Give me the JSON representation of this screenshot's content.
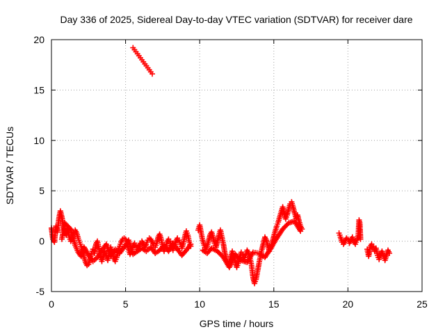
{
  "chart_data": {
    "type": "scatter",
    "title": "Day 336 of 2025, Sidereal Day-to-day VTEC variation (SDTVAR) for receiver dare",
    "xlabel": "GPS time / hours",
    "ylabel": "SDTVAR / TECUs",
    "xlim": [
      0,
      25
    ],
    "ylim": [
      -5,
      20
    ],
    "xticks": [
      "0",
      "5",
      "10",
      "15",
      "20",
      "25"
    ],
    "yticks": [
      "-5",
      "0",
      "5",
      "10",
      "15",
      "20"
    ],
    "grid": true,
    "marker": "+",
    "color": "#ff0000",
    "series": [
      {
        "name": "SDTVAR",
        "segments": [
          [
            [
              0.0,
              1.3
            ],
            [
              0.1,
              0.2
            ],
            [
              0.2,
              -0.1
            ],
            [
              0.3,
              1.5
            ],
            [
              0.4,
              0.9
            ],
            [
              0.5,
              2.2
            ],
            [
              0.6,
              3.0
            ],
            [
              0.7,
              2.4
            ],
            [
              0.8,
              1.6
            ],
            [
              0.9,
              0.9
            ],
            [
              1.0,
              0.6
            ],
            [
              1.1,
              1.3
            ],
            [
              1.2,
              0.4
            ],
            [
              1.3,
              0.0
            ],
            [
              1.4,
              0.3
            ],
            [
              1.5,
              0.9
            ],
            [
              1.6,
              1.1
            ],
            [
              1.7,
              0.8
            ],
            [
              1.8,
              0.3
            ],
            [
              1.9,
              -0.1
            ],
            [
              2.0,
              -0.5
            ],
            [
              2.1,
              -1.0
            ],
            [
              2.2,
              -1.6
            ],
            [
              2.3,
              -2.1
            ],
            [
              2.4,
              -2.4
            ],
            [
              2.5,
              -2.3
            ],
            [
              2.6,
              -1.8
            ],
            [
              2.7,
              -1.2
            ],
            [
              2.8,
              -0.8
            ],
            [
              2.9,
              -1.2
            ],
            [
              3.0,
              -0.3
            ],
            [
              3.1,
              0.0
            ],
            [
              3.2,
              -0.7
            ],
            [
              3.3,
              -1.5
            ],
            [
              3.4,
              -2.0
            ],
            [
              3.5,
              -1.6
            ],
            [
              3.6,
              -1.0
            ],
            [
              3.7,
              -1.4
            ],
            [
              3.8,
              -1.9
            ],
            [
              3.9,
              -1.2
            ],
            [
              4.0,
              -0.6
            ],
            [
              4.1,
              -1.0
            ],
            [
              4.2,
              -1.7
            ],
            [
              4.3,
              -2.0
            ],
            [
              4.4,
              -1.6
            ],
            [
              4.5,
              -1.0
            ],
            [
              4.6,
              -0.5
            ],
            [
              4.7,
              -0.1
            ],
            [
              4.8,
              0.2
            ],
            [
              4.9,
              0.3
            ],
            [
              5.0,
              0.2
            ],
            [
              5.1,
              -0.2
            ],
            [
              5.2,
              -0.8
            ],
            [
              5.3,
              -1.3
            ],
            [
              5.4,
              -1.0
            ],
            [
              5.5,
              -0.5
            ],
            [
              5.6,
              -0.2
            ],
            [
              5.7,
              -0.4
            ],
            [
              5.8,
              -0.8
            ],
            [
              5.9,
              -0.5
            ],
            [
              6.0,
              -0.2
            ],
            [
              6.1,
              0.0
            ],
            [
              6.2,
              -0.3
            ],
            [
              6.3,
              -0.6
            ],
            [
              6.4,
              -0.3
            ],
            [
              6.5,
              0.1
            ],
            [
              6.6,
              0.3
            ],
            [
              6.7,
              0.2
            ],
            [
              6.8,
              -0.1
            ],
            [
              6.9,
              -0.4
            ],
            [
              7.0,
              -0.6
            ],
            [
              7.1,
              -0.2
            ],
            [
              7.2,
              0.4
            ],
            [
              7.3,
              0.7
            ],
            [
              7.4,
              0.2
            ],
            [
              7.5,
              -0.5
            ],
            [
              7.6,
              -1.0
            ],
            [
              7.7,
              -0.6
            ],
            [
              7.8,
              -0.1
            ],
            [
              7.9,
              0.2
            ],
            [
              8.0,
              0.0
            ],
            [
              8.1,
              -0.4
            ],
            [
              8.2,
              -0.9
            ],
            [
              8.3,
              -0.5
            ],
            [
              8.4,
              0.0
            ],
            [
              8.5,
              0.3
            ],
            [
              8.6,
              0.1
            ],
            [
              8.7,
              -0.3
            ],
            [
              8.8,
              -0.7
            ],
            [
              8.9,
              -0.2
            ],
            [
              9.0,
              0.5
            ],
            [
              9.1,
              1.0
            ],
            [
              9.2,
              0.6
            ],
            [
              9.3,
              -0.1
            ],
            [
              9.4,
              -0.5
            ]
          ],
          [
            [
              0.7,
              0.2
            ],
            [
              0.9,
              1.8
            ],
            [
              1.3,
              1.2
            ],
            [
              1.6,
              -0.4
            ],
            [
              1.8,
              -1.1
            ],
            [
              2.0,
              -1.5
            ],
            [
              2.2,
              -0.6
            ],
            [
              2.5,
              -1.4
            ],
            [
              2.8,
              -2.0
            ],
            [
              3.1,
              -1.6
            ],
            [
              3.4,
              -0.9
            ],
            [
              3.7,
              -0.3
            ],
            [
              4.0,
              -1.5
            ],
            [
              4.3,
              -0.8
            ],
            [
              4.6,
              -1.2
            ],
            [
              4.9,
              -0.6
            ],
            [
              5.2,
              0.1
            ],
            [
              5.5,
              -1.3
            ],
            [
              5.8,
              -1.0
            ],
            [
              6.1,
              -0.7
            ],
            [
              6.4,
              -1.0
            ],
            [
              6.7,
              -0.6
            ],
            [
              7.0,
              -1.2
            ],
            [
              7.3,
              -0.9
            ],
            [
              7.6,
              -0.4
            ],
            [
              7.9,
              -1.0
            ],
            [
              8.2,
              -0.2
            ],
            [
              8.5,
              -0.8
            ],
            [
              8.8,
              -1.4
            ],
            [
              9.1,
              -0.9
            ],
            [
              9.4,
              -0.3
            ]
          ],
          [
            [
              5.5,
              19.2
            ],
            [
              5.6,
              19.0
            ],
            [
              5.7,
              18.8
            ],
            [
              5.8,
              18.6
            ],
            [
              5.9,
              18.4
            ],
            [
              6.0,
              18.2
            ],
            [
              6.1,
              18.0
            ],
            [
              6.2,
              17.8
            ],
            [
              6.3,
              17.6
            ],
            [
              6.4,
              17.4
            ],
            [
              6.5,
              17.2
            ],
            [
              6.6,
              17.0
            ],
            [
              6.7,
              16.8
            ],
            [
              6.8,
              16.6
            ]
          ],
          [
            [
              9.9,
              1.1
            ],
            [
              10.0,
              1.6
            ],
            [
              10.1,
              0.8
            ],
            [
              10.2,
              0.1
            ],
            [
              10.3,
              -0.4
            ],
            [
              10.4,
              -0.8
            ],
            [
              10.5,
              -0.5
            ],
            [
              10.6,
              0.0
            ],
            [
              10.7,
              0.6
            ],
            [
              10.8,
              0.9
            ],
            [
              10.9,
              0.4
            ],
            [
              11.0,
              -0.2
            ],
            [
              11.1,
              -0.6
            ],
            [
              11.2,
              0.0
            ],
            [
              11.3,
              0.6
            ],
            [
              11.4,
              1.1
            ],
            [
              11.5,
              0.4
            ],
            [
              11.6,
              -0.3
            ],
            [
              11.7,
              -1.2
            ],
            [
              11.8,
              -1.8
            ],
            [
              11.9,
              -2.3
            ],
            [
              12.0,
              -2.1
            ],
            [
              12.1,
              -1.5
            ],
            [
              12.2,
              -1.0
            ],
            [
              12.3,
              -1.4
            ],
            [
              12.4,
              -2.0
            ],
            [
              12.5,
              -2.6
            ],
            [
              12.6,
              -2.2
            ],
            [
              12.7,
              -1.6
            ],
            [
              12.8,
              -1.1
            ],
            [
              12.9,
              -1.3
            ],
            [
              13.0,
              -1.8
            ],
            [
              13.1,
              -1.4
            ],
            [
              13.2,
              -0.9
            ],
            [
              13.3,
              -1.2
            ],
            [
              13.4,
              -1.7
            ],
            [
              13.5,
              -2.4
            ],
            [
              13.6,
              -3.6
            ],
            [
              13.7,
              -4.2
            ],
            [
              13.8,
              -3.8
            ],
            [
              13.9,
              -3.0
            ],
            [
              14.0,
              -2.2
            ],
            [
              14.1,
              -1.5
            ],
            [
              14.2,
              -0.8
            ],
            [
              14.3,
              -0.2
            ],
            [
              14.4,
              0.4
            ],
            [
              14.5,
              0.1
            ],
            [
              14.6,
              -0.5
            ],
            [
              14.7,
              -1.0
            ],
            [
              14.8,
              -0.6
            ],
            [
              14.9,
              -0.1
            ],
            [
              15.0,
              0.5
            ],
            [
              15.1,
              1.0
            ],
            [
              15.2,
              1.5
            ],
            [
              15.3,
              1.9
            ],
            [
              15.4,
              2.4
            ],
            [
              15.5,
              2.9
            ],
            [
              15.6,
              3.4
            ],
            [
              15.7,
              2.8
            ],
            [
              15.8,
              2.2
            ],
            [
              15.9,
              2.6
            ],
            [
              16.0,
              3.2
            ],
            [
              16.1,
              3.7
            ],
            [
              16.2,
              3.9
            ],
            [
              16.3,
              3.4
            ],
            [
              16.4,
              2.8
            ],
            [
              16.5,
              2.3
            ],
            [
              16.6,
              2.6
            ],
            [
              16.7,
              2.0
            ],
            [
              16.8,
              1.5
            ],
            [
              16.9,
              1.2
            ]
          ],
          [
            [
              10.2,
              -0.9
            ],
            [
              10.5,
              -1.2
            ],
            [
              10.8,
              -0.7
            ],
            [
              11.2,
              -1.0
            ],
            [
              11.6,
              -1.6
            ],
            [
              12.0,
              -2.6
            ],
            [
              12.4,
              -1.3
            ],
            [
              12.8,
              -1.9
            ],
            [
              13.2,
              -2.1
            ],
            [
              13.6,
              -1.1
            ],
            [
              14.0,
              -1.2
            ],
            [
              14.4,
              -1.6
            ],
            [
              14.8,
              -0.7
            ],
            [
              15.2,
              0.3
            ],
            [
              15.6,
              1.2
            ],
            [
              16.0,
              1.8
            ],
            [
              16.4,
              2.0
            ],
            [
              16.8,
              1.0
            ]
          ],
          [
            [
              19.4,
              0.8
            ],
            [
              19.5,
              0.4
            ],
            [
              19.6,
              -0.1
            ],
            [
              19.7,
              -0.3
            ],
            [
              19.8,
              0.0
            ],
            [
              19.9,
              0.3
            ],
            [
              20.0,
              0.2
            ],
            [
              20.1,
              -0.2
            ],
            [
              20.2,
              0.1
            ],
            [
              20.3,
              0.4
            ],
            [
              20.4,
              0.0
            ],
            [
              20.5,
              -0.3
            ],
            [
              20.6,
              0.1
            ],
            [
              20.7,
              0.6
            ],
            [
              20.75,
              2.1
            ],
            [
              20.8,
              1.8
            ],
            [
              20.85,
              0.2
            ]
          ],
          [
            [
              21.3,
              -0.8
            ],
            [
              21.4,
              -1.5
            ],
            [
              21.5,
              -0.6
            ],
            [
              21.6,
              -0.3
            ],
            [
              21.7,
              -0.5
            ],
            [
              21.8,
              -1.0
            ],
            [
              21.9,
              -0.7
            ],
            [
              22.0,
              -1.4
            ],
            [
              22.1,
              -1.8
            ],
            [
              22.2,
              -1.3
            ],
            [
              22.3,
              -1.0
            ],
            [
              22.4,
              -1.5
            ],
            [
              22.5,
              -1.9
            ],
            [
              22.6,
              -1.4
            ],
            [
              22.7,
              -0.9
            ],
            [
              22.8,
              -1.2
            ]
          ]
        ]
      }
    ]
  }
}
